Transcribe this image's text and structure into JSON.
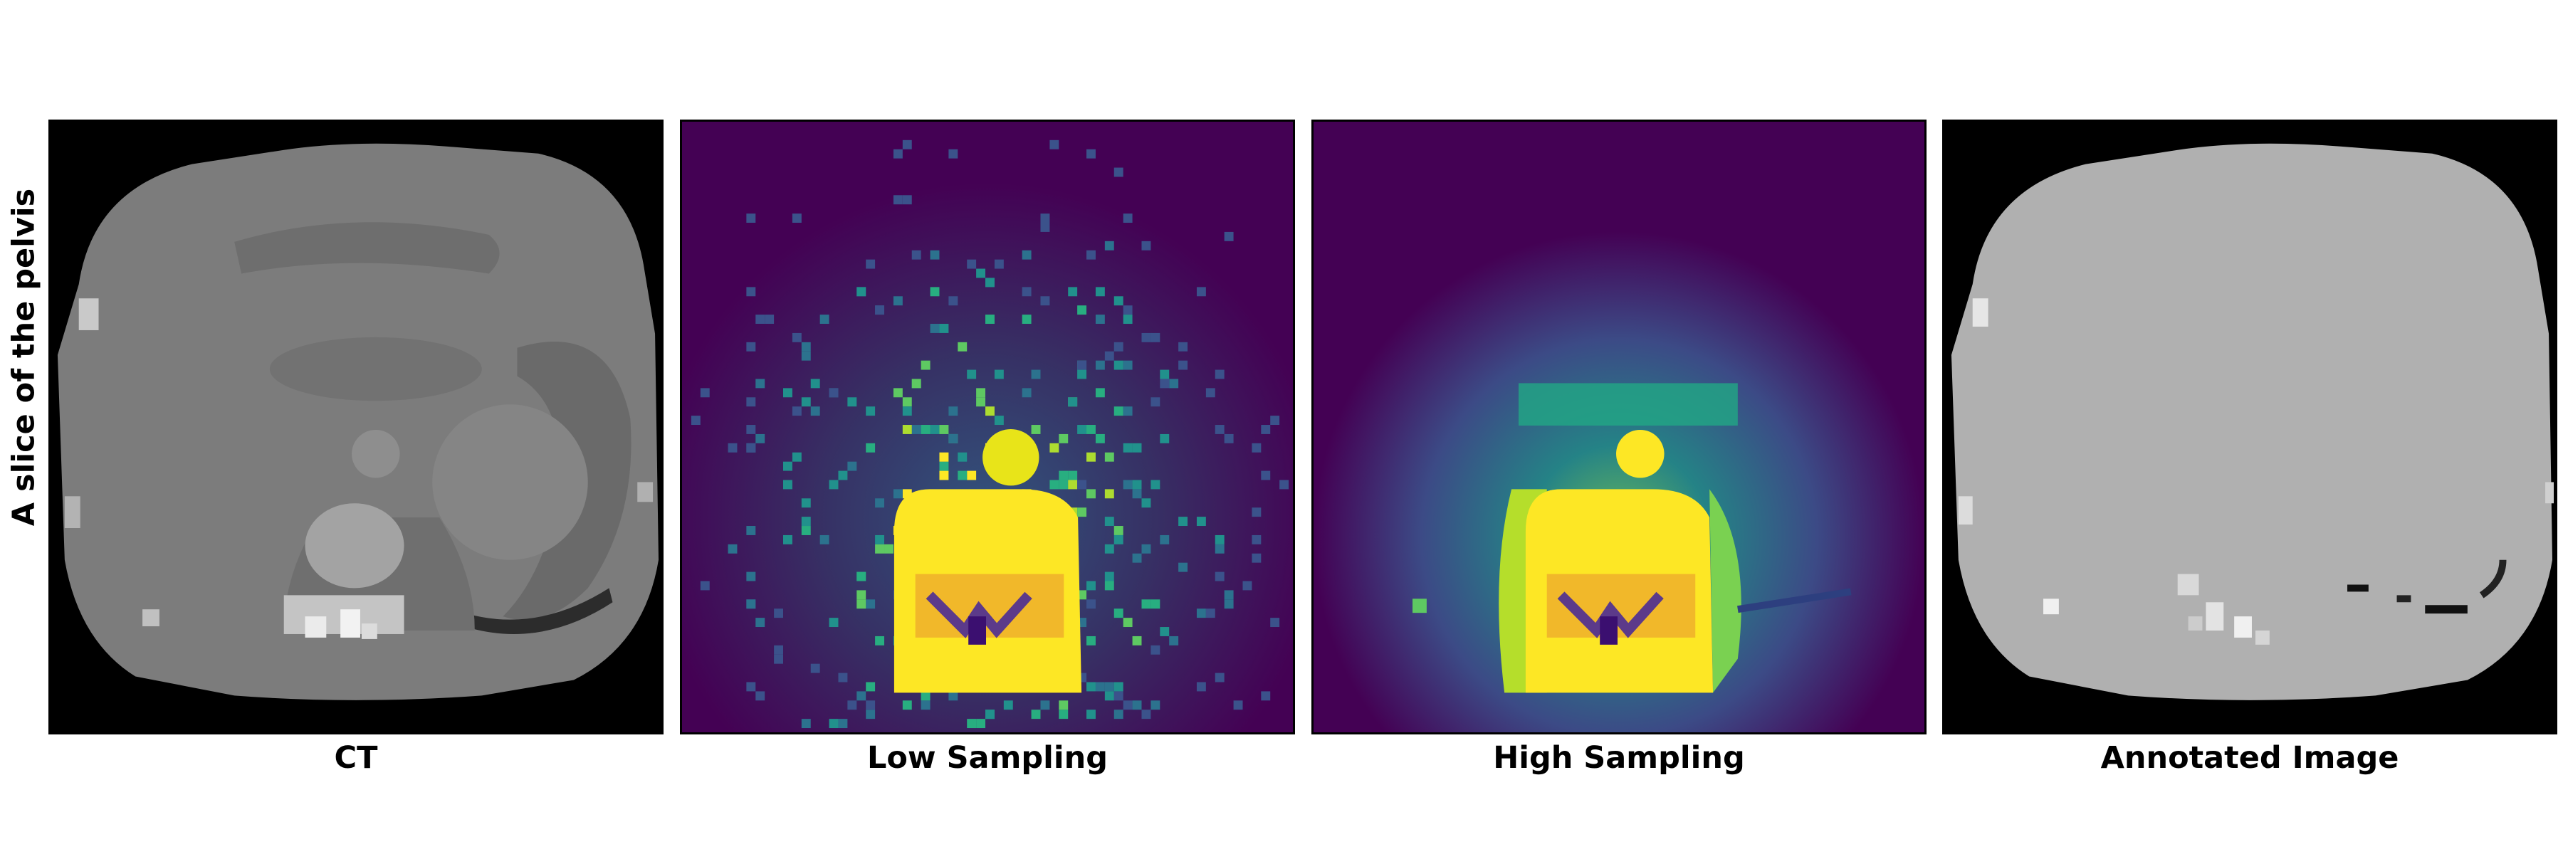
{
  "row_label": "A slice of the pelvis",
  "panels": [
    {
      "title": "CT",
      "colormap": "gray"
    },
    {
      "title": "Low Sampling",
      "colormap": "viridis"
    },
    {
      "title": "High Sampling",
      "colormap": "viridis"
    },
    {
      "title": "Annotated Image",
      "colormap": "gray"
    }
  ],
  "colors": {
    "background": "#000000",
    "ct_tissue": "#7a7a7a",
    "annotated_tissue": "#b0b0b0",
    "viridis_low": "#440154",
    "viridis_high": "#fde725"
  }
}
